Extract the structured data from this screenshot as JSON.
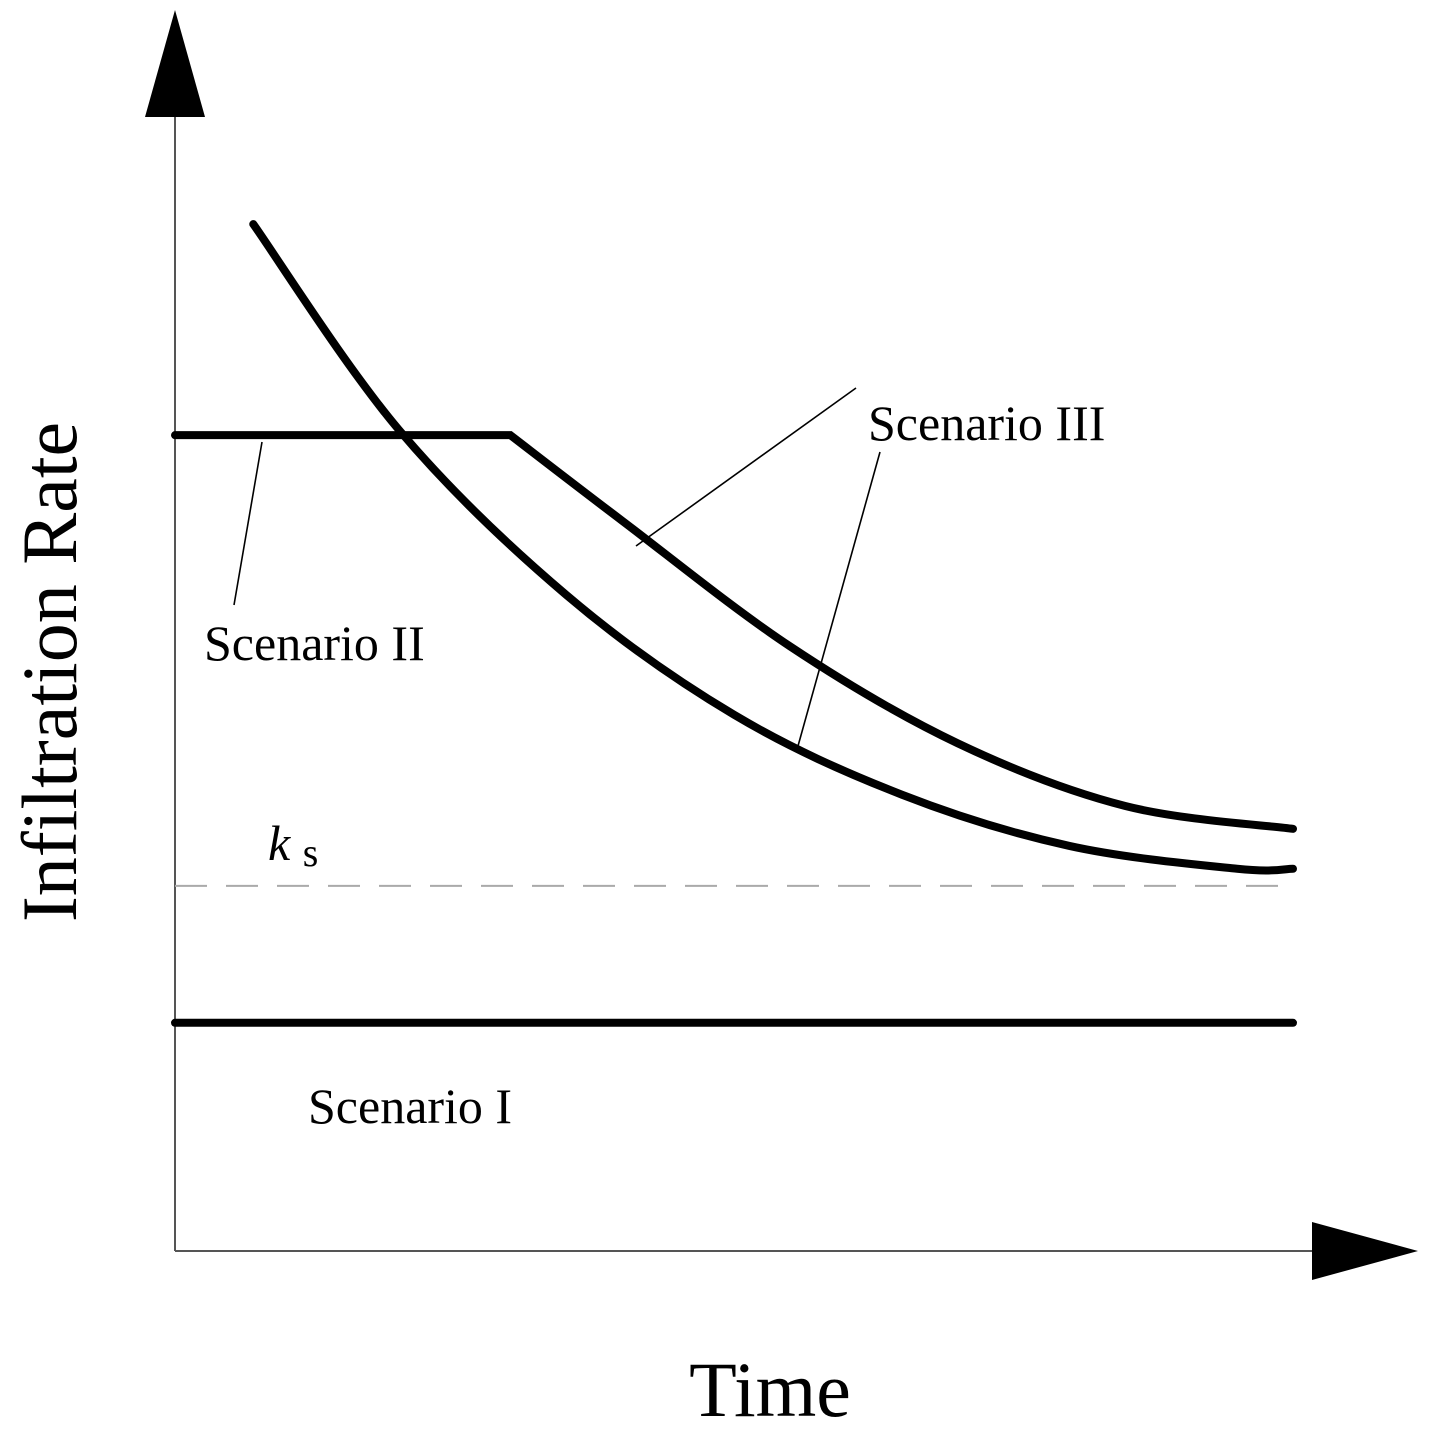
{
  "chart_data": {
    "type": "line",
    "title": "",
    "xlabel": "Time",
    "ylabel": "Infiltration Rate",
    "grid": false,
    "reference_lines": [
      {
        "label_main": "k",
        "label_sub": "s",
        "y": 0.32,
        "style": "dashed"
      }
    ],
    "series": [
      {
        "name": "Scenario I",
        "points": [
          [
            0.0,
            0.2
          ],
          [
            1.0,
            0.2
          ]
        ]
      },
      {
        "name": "Scenario II",
        "points": [
          [
            0.0,
            0.715
          ],
          [
            0.3,
            0.715
          ],
          [
            0.4,
            0.64
          ],
          [
            0.55,
            0.53
          ],
          [
            0.7,
            0.445
          ],
          [
            0.85,
            0.39
          ],
          [
            1.0,
            0.37
          ]
        ]
      },
      {
        "name": "Scenario III",
        "points": [
          [
            0.07,
            0.9
          ],
          [
            0.2,
            0.72
          ],
          [
            0.35,
            0.575
          ],
          [
            0.5,
            0.47
          ],
          [
            0.65,
            0.4
          ],
          [
            0.8,
            0.355
          ],
          [
            0.95,
            0.335
          ],
          [
            1.0,
            0.335
          ]
        ]
      }
    ],
    "annotations": {
      "scenario_I": "Scenario I",
      "scenario_II": "Scenario II",
      "scenario_III": "Scenario III"
    },
    "xlim": [
      0,
      1.1
    ],
    "ylim": [
      0,
      1.0
    ]
  },
  "colors": {
    "curve": "#000000",
    "axis": "#555555",
    "ks_line": "#aaaaaa"
  }
}
